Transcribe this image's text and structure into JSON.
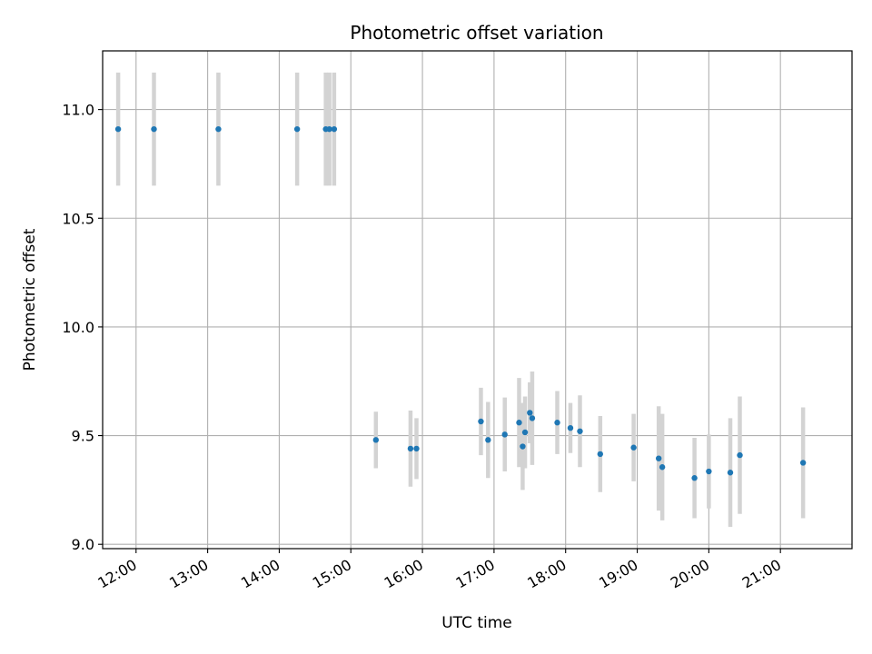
{
  "chart_data": {
    "type": "scatter",
    "title": "Photometric offset variation",
    "xlabel": "UTC time",
    "ylabel": "Photometric offset",
    "xlim": [
      "11:32",
      "22:00"
    ],
    "ylim": [
      8.98,
      11.27
    ],
    "grid": true,
    "x_ticks": [
      "12:00",
      "13:00",
      "14:00",
      "15:00",
      "16:00",
      "17:00",
      "18:00",
      "19:00",
      "20:00",
      "21:00"
    ],
    "y_ticks": [
      "9.0",
      "9.5",
      "10.0",
      "10.5",
      "11.0"
    ],
    "colors": {
      "point": "#1f77b4",
      "errorbar": "#d3d3d3",
      "grid": "#b0b0b0"
    },
    "points": [
      {
        "x": "11:45",
        "y": 10.91,
        "yerr": 0.26
      },
      {
        "x": "12:15",
        "y": 10.91,
        "yerr": 0.26
      },
      {
        "x": "13:09",
        "y": 10.91,
        "yerr": 0.26
      },
      {
        "x": "14:15",
        "y": 10.91,
        "yerr": 0.26
      },
      {
        "x": "14:39",
        "y": 10.91,
        "yerr": 0.26
      },
      {
        "x": "14:42",
        "y": 10.91,
        "yerr": 0.26
      },
      {
        "x": "14:46",
        "y": 10.91,
        "yerr": 0.26
      },
      {
        "x": "15:21",
        "y": 9.48,
        "yerr": 0.13
      },
      {
        "x": "15:50",
        "y": 9.44,
        "yerr": 0.175
      },
      {
        "x": "15:55",
        "y": 9.44,
        "yerr": 0.14
      },
      {
        "x": "16:49",
        "y": 9.565,
        "yerr": 0.155
      },
      {
        "x": "16:55",
        "y": 9.48,
        "yerr": 0.175
      },
      {
        "x": "17:09",
        "y": 9.505,
        "yerr": 0.17
      },
      {
        "x": "17:21",
        "y": 9.56,
        "yerr": 0.205
      },
      {
        "x": "17:24",
        "y": 9.45,
        "yerr": 0.2
      },
      {
        "x": "17:26",
        "y": 9.515,
        "yerr": 0.165
      },
      {
        "x": "17:30",
        "y": 9.605,
        "yerr": 0.14
      },
      {
        "x": "17:32",
        "y": 9.58,
        "yerr": 0.215
      },
      {
        "x": "17:53",
        "y": 9.56,
        "yerr": 0.145
      },
      {
        "x": "18:04",
        "y": 9.535,
        "yerr": 0.115
      },
      {
        "x": "18:12",
        "y": 9.52,
        "yerr": 0.165
      },
      {
        "x": "18:29",
        "y": 9.415,
        "yerr": 0.175
      },
      {
        "x": "18:57",
        "y": 9.445,
        "yerr": 0.155
      },
      {
        "x": "19:18",
        "y": 9.395,
        "yerr": 0.24
      },
      {
        "x": "19:21",
        "y": 9.355,
        "yerr": 0.245
      },
      {
        "x": "19:48",
        "y": 9.305,
        "yerr": 0.185
      },
      {
        "x": "20:00",
        "y": 9.335,
        "yerr": 0.17
      },
      {
        "x": "20:18",
        "y": 9.33,
        "yerr": 0.25
      },
      {
        "x": "20:26",
        "y": 9.41,
        "yerr": 0.27
      },
      {
        "x": "21:19",
        "y": 9.375,
        "yerr": 0.255
      }
    ]
  }
}
